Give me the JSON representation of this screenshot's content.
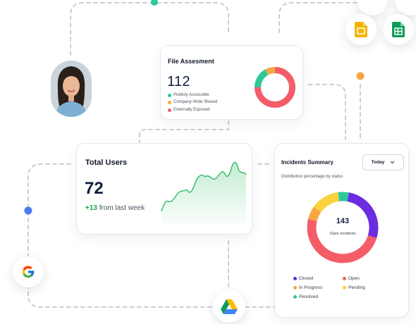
{
  "file_assessment": {
    "title": "File Assesment",
    "count": "112",
    "legend": [
      {
        "label": "Publicly Accessible",
        "color": "#2ec89a",
        "value": 0.17
      },
      {
        "label": "Company-Wide Shared",
        "color": "#f5a742",
        "value": 0.08
      },
      {
        "label": "Externally Exposed",
        "color": "#f45d68",
        "value": 0.75
      }
    ]
  },
  "total_users": {
    "title": "Total Users",
    "count": "72",
    "delta": "+13",
    "delta_suffix": " from last week",
    "trend_color": "#2ebc62"
  },
  "incidents": {
    "title": "Incidents Summary",
    "subtitle": "Distribution percentage by status",
    "period_label": "Today",
    "total": "143",
    "total_label": "Open Incidents",
    "segments": [
      {
        "label": "Closed",
        "color": "#6a2de0",
        "value": 0.27
      },
      {
        "label": "Open",
        "color": "#f45d68",
        "value": 0.49
      },
      {
        "label": "In Progress",
        "color": "#f5a742",
        "value": 0.06
      },
      {
        "label": "Pending",
        "color": "#f8d23f",
        "value": 0.13
      },
      {
        "label": "Resolved",
        "color": "#2ec89a",
        "value": 0.05
      }
    ]
  },
  "integrations": [
    "google-icon",
    "google-drive-icon",
    "google-slides-icon",
    "google-sheets-icon"
  ],
  "accent_colors": {
    "green_dot": "#2ec89a",
    "orange_dot": "#f5a742",
    "blue_dot": "#4a7cf0"
  }
}
